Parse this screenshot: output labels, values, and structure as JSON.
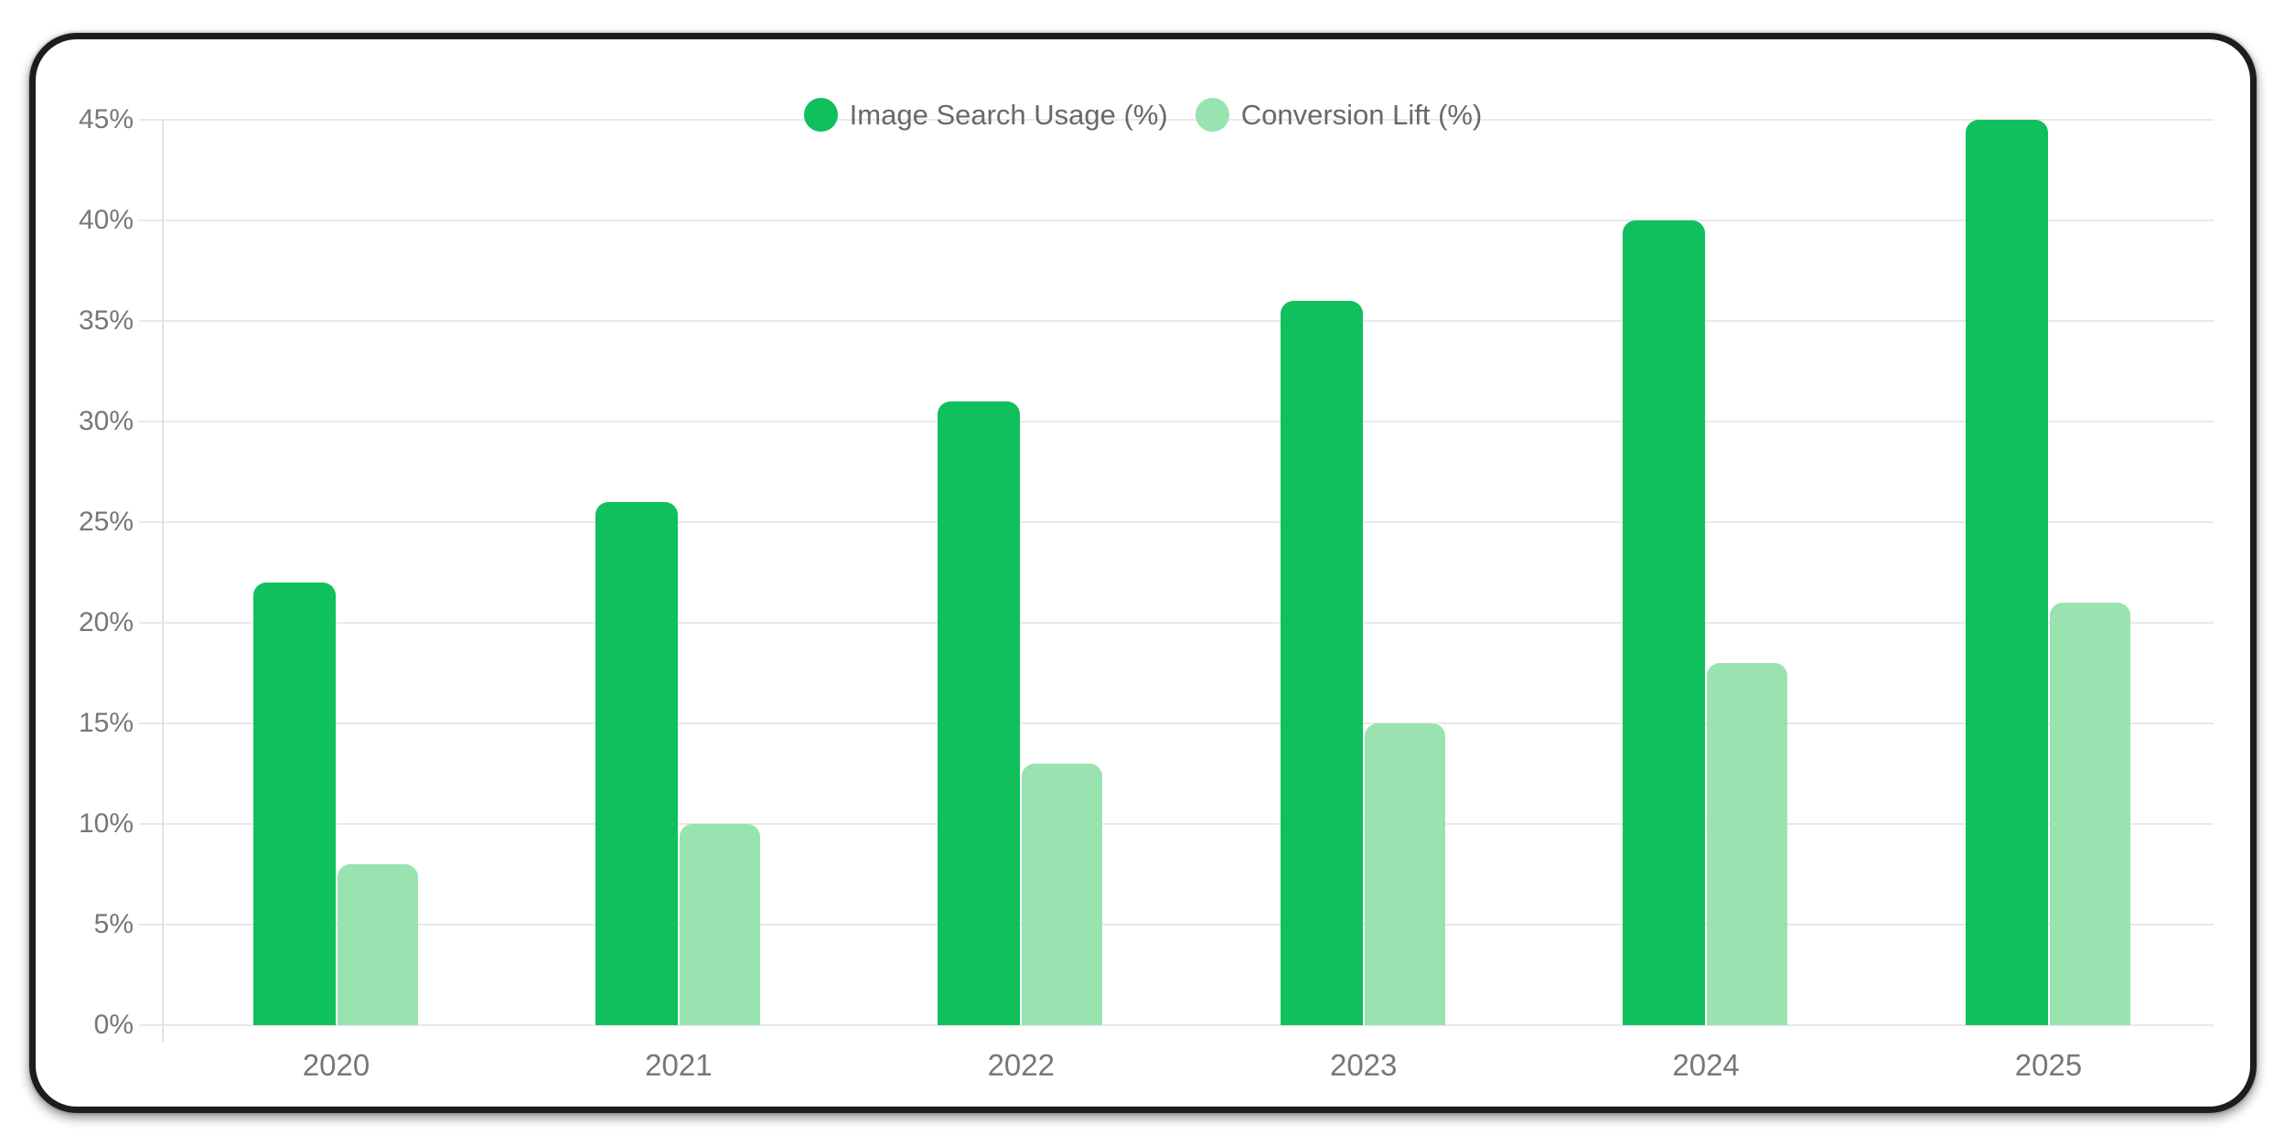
{
  "chart_data": {
    "type": "bar",
    "title": "",
    "categories": [
      "2020",
      "2021",
      "2022",
      "2023",
      "2024",
      "2025"
    ],
    "series": [
      {
        "name": "Image Search Usage (%)",
        "color": "#0FC05C",
        "values": [
          22,
          26,
          31,
          36,
          40,
          45
        ]
      },
      {
        "name": "Conversion Lift (%)",
        "color": "#99E3B0",
        "values": [
          8,
          10,
          13,
          15,
          18,
          21
        ]
      }
    ],
    "xlabel": "",
    "ylabel": "",
    "ylim": [
      0,
      45
    ],
    "ytick_step": 5,
    "ytick_suffix": "%",
    "grid": "horizontal",
    "legend_position": "top",
    "colors": {
      "gridline": "#e9e9e9",
      "axis_line": "#e2e2e2",
      "tick_text": "#75777a",
      "legend_text": "#66696d",
      "card_border": "#1d1d1f",
      "background": "#ffffff"
    }
  }
}
